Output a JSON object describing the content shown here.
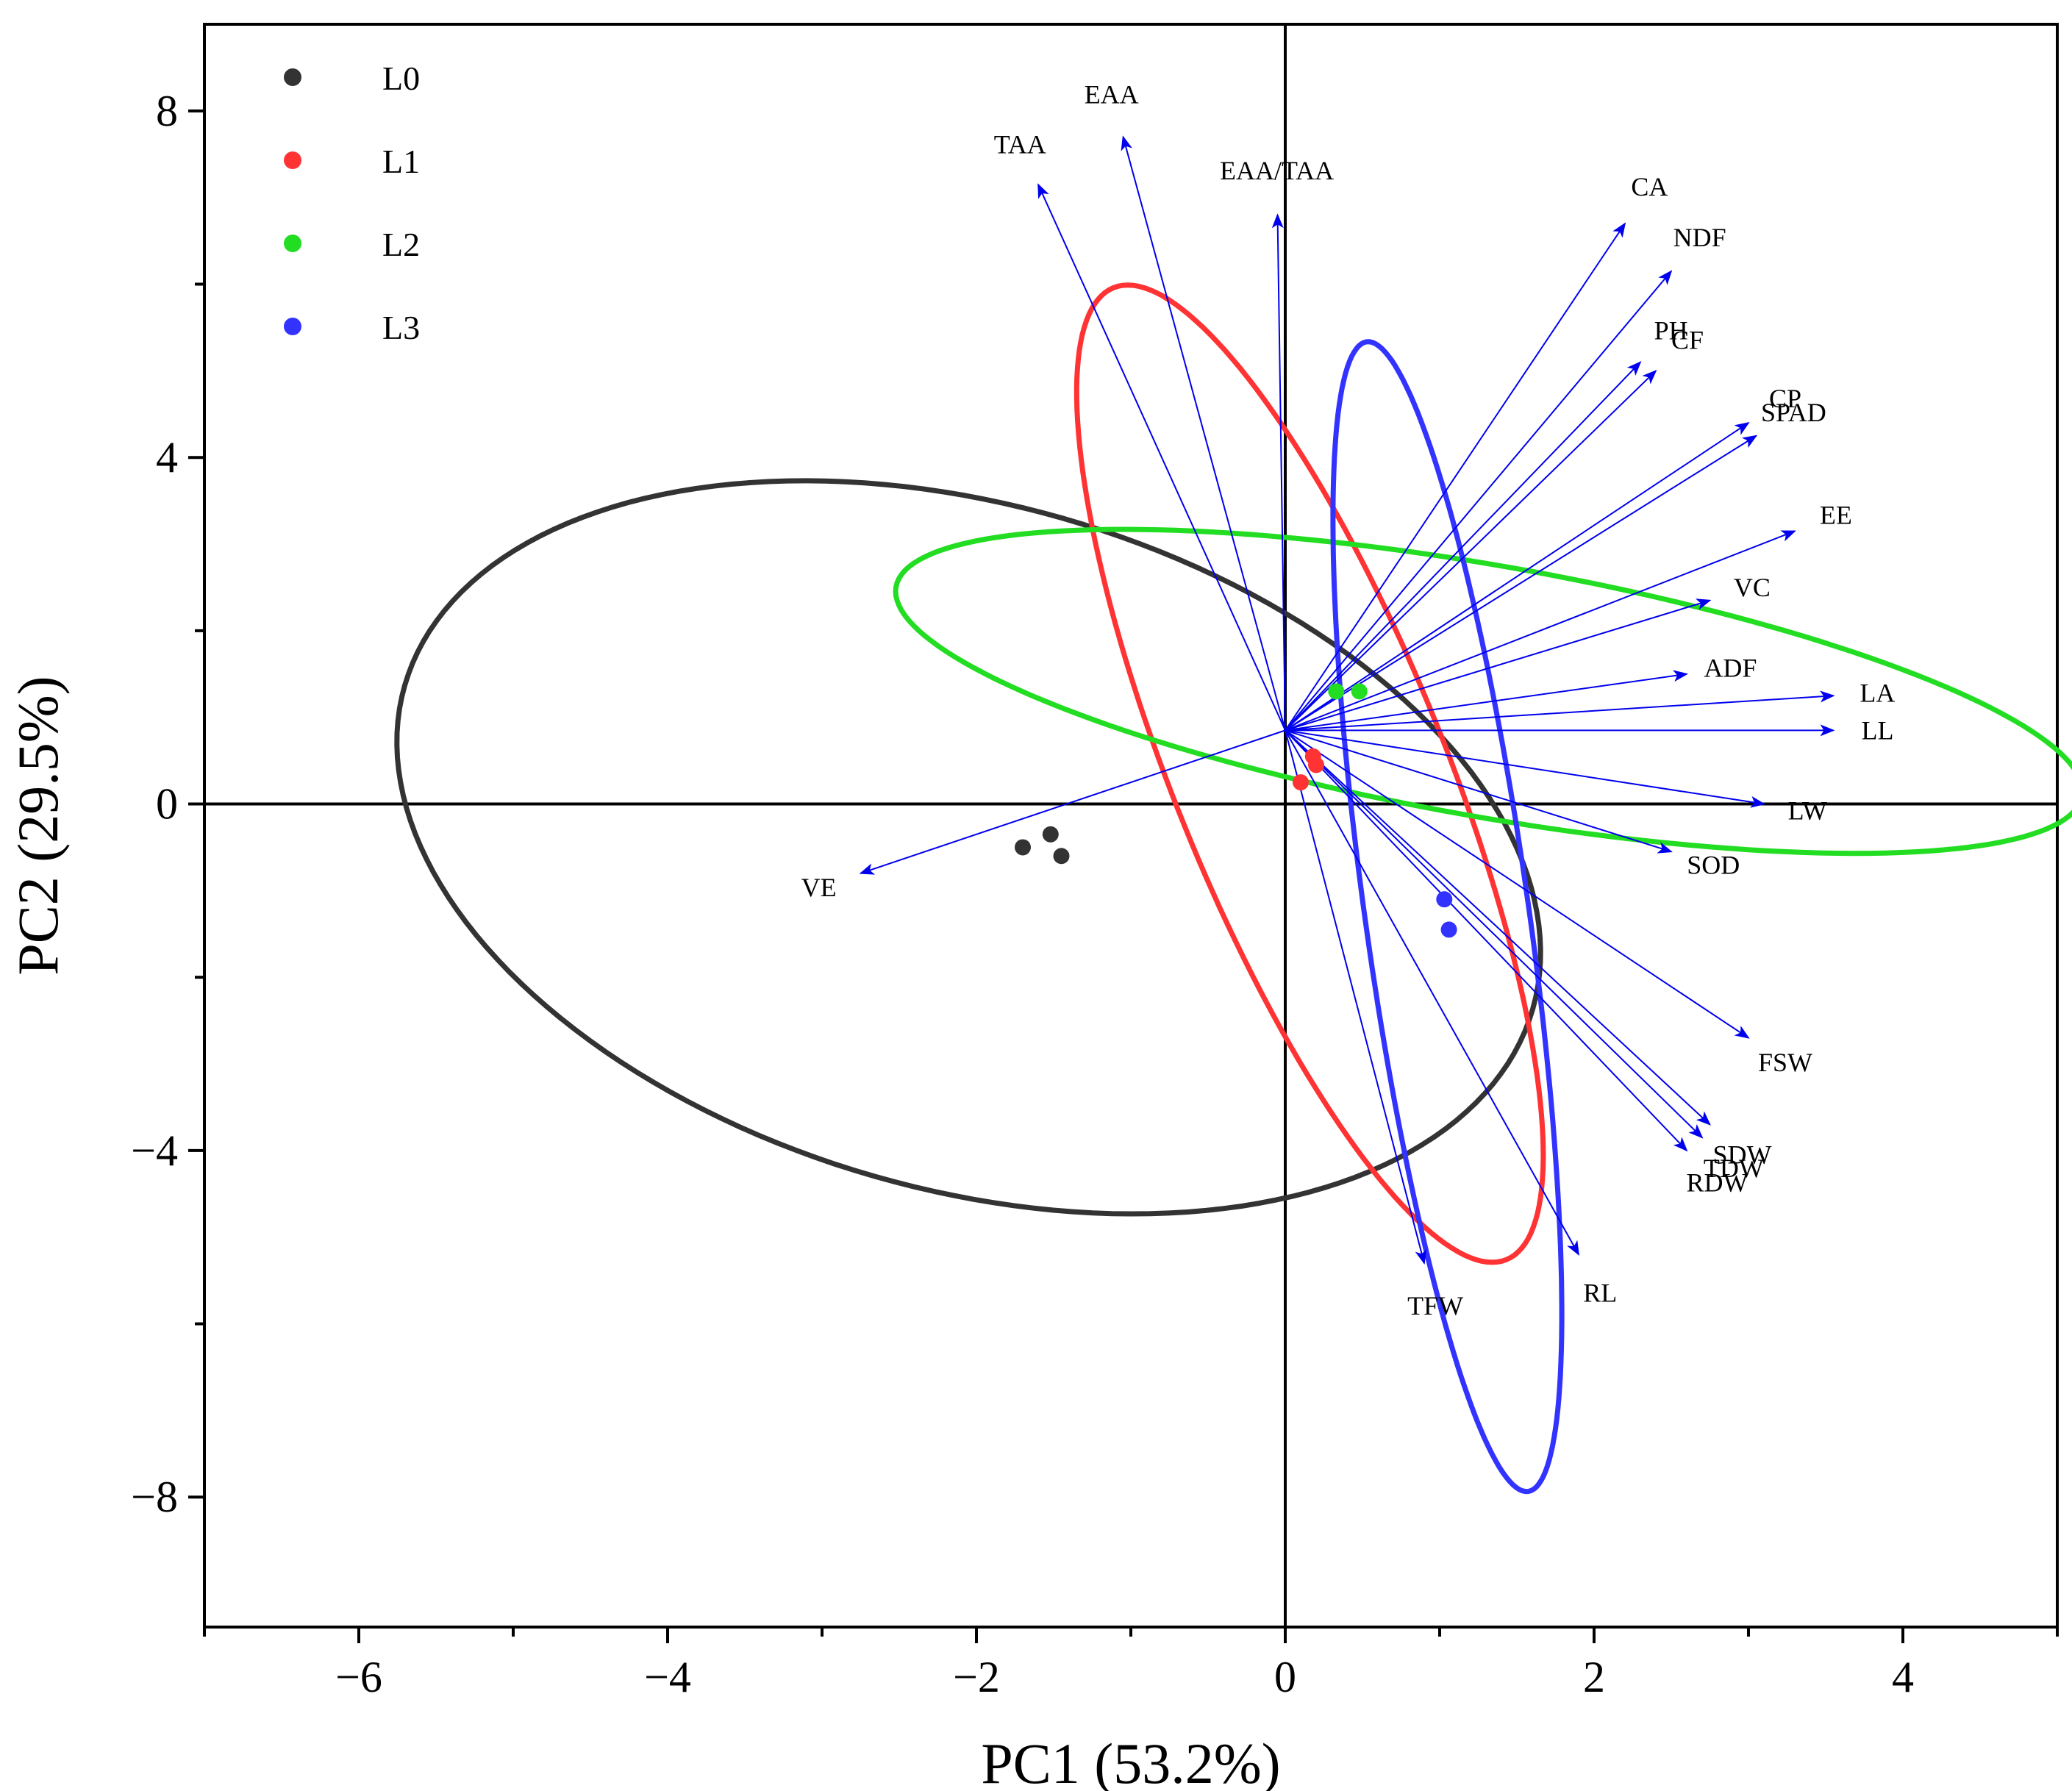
{
  "chart_data": {
    "type": "scatter",
    "subtype": "pca-biplot",
    "xlabel": "PC1 (53.2%)",
    "ylabel": "PC2 (29.5%)",
    "xlim": [
      -7,
      5
    ],
    "ylim": [
      -9.5,
      9
    ],
    "xticks": [
      -6,
      -4,
      -2,
      0,
      2,
      4
    ],
    "yticks": [
      -8,
      -4,
      0,
      4,
      8
    ],
    "legend_position": "top-left",
    "origin": [
      0,
      0.85
    ],
    "groups": [
      {
        "name": "L0",
        "color": "#333333",
        "points": [
          [
            -1.7,
            -0.5
          ],
          [
            -1.52,
            -0.35
          ],
          [
            -1.45,
            -0.6
          ]
        ],
        "ellipse": {
          "cx": -2.05,
          "cy": -0.5,
          "rx": 3.8,
          "ry": 3.95,
          "angle": -16
        }
      },
      {
        "name": "L1",
        "color": "#ff3333",
        "points": [
          [
            0.18,
            0.55
          ],
          [
            0.1,
            0.25
          ],
          [
            0.2,
            0.45
          ]
        ],
        "ellipse": {
          "cx": 0.16,
          "cy": 0.35,
          "rx": 0.88,
          "ry": 6.05,
          "angle": 22
        }
      },
      {
        "name": "L2",
        "color": "#22dd22",
        "points": [
          [
            0.33,
            1.3
          ],
          [
            0.48,
            1.3
          ]
        ],
        "ellipse": {
          "cx": 1.32,
          "cy": 1.3,
          "rx": 3.9,
          "ry": 1.45,
          "angle": -10
        }
      },
      {
        "name": "L3",
        "color": "#3333ff",
        "points": [
          [
            1.03,
            -1.1
          ],
          [
            1.06,
            -1.45
          ]
        ],
        "ellipse": {
          "cx": 1.05,
          "cy": -1.3,
          "rx": 0.53,
          "ry": 6.7,
          "angle": 8
        }
      }
    ],
    "arrow_color": "#0000ee",
    "loadings": [
      {
        "name": "EAA",
        "x": -1.05,
        "y": 7.7
      },
      {
        "name": "TAA",
        "x": -1.6,
        "y": 7.15
      },
      {
        "name": "EAA/TAA",
        "x": -0.05,
        "y": 6.8
      },
      {
        "name": "CA",
        "x": 2.2,
        "y": 6.7
      },
      {
        "name": "NDF",
        "x": 2.5,
        "y": 6.15
      },
      {
        "name": "PH",
        "x": 2.3,
        "y": 5.1
      },
      {
        "name": "CF",
        "x": 2.4,
        "y": 5.0
      },
      {
        "name": "CP",
        "x": 3.0,
        "y": 4.4
      },
      {
        "name": "SPAD",
        "x": 3.05,
        "y": 4.25
      },
      {
        "name": "EE",
        "x": 3.3,
        "y": 3.15
      },
      {
        "name": "VC",
        "x": 2.75,
        "y": 2.35
      },
      {
        "name": "ADF",
        "x": 2.6,
        "y": 1.5
      },
      {
        "name": "LA",
        "x": 3.55,
        "y": 1.25
      },
      {
        "name": "LL",
        "x": 3.55,
        "y": 0.85
      },
      {
        "name": "LW",
        "x": 3.1,
        "y": 0.0
      },
      {
        "name": "SOD",
        "x": 2.5,
        "y": -0.55
      },
      {
        "name": "FSW",
        "x": 3.0,
        "y": -2.7
      },
      {
        "name": "SDW",
        "x": 2.75,
        "y": -3.7
      },
      {
        "name": "TDW",
        "x": 2.7,
        "y": -3.85
      },
      {
        "name": "RDW",
        "x": 2.6,
        "y": -4.0
      },
      {
        "name": "RL",
        "x": 1.9,
        "y": -5.2
      },
      {
        "name": "TFW",
        "x": 0.9,
        "y": -5.3
      },
      {
        "name": "VE",
        "x": -2.75,
        "y": -0.8
      }
    ]
  }
}
